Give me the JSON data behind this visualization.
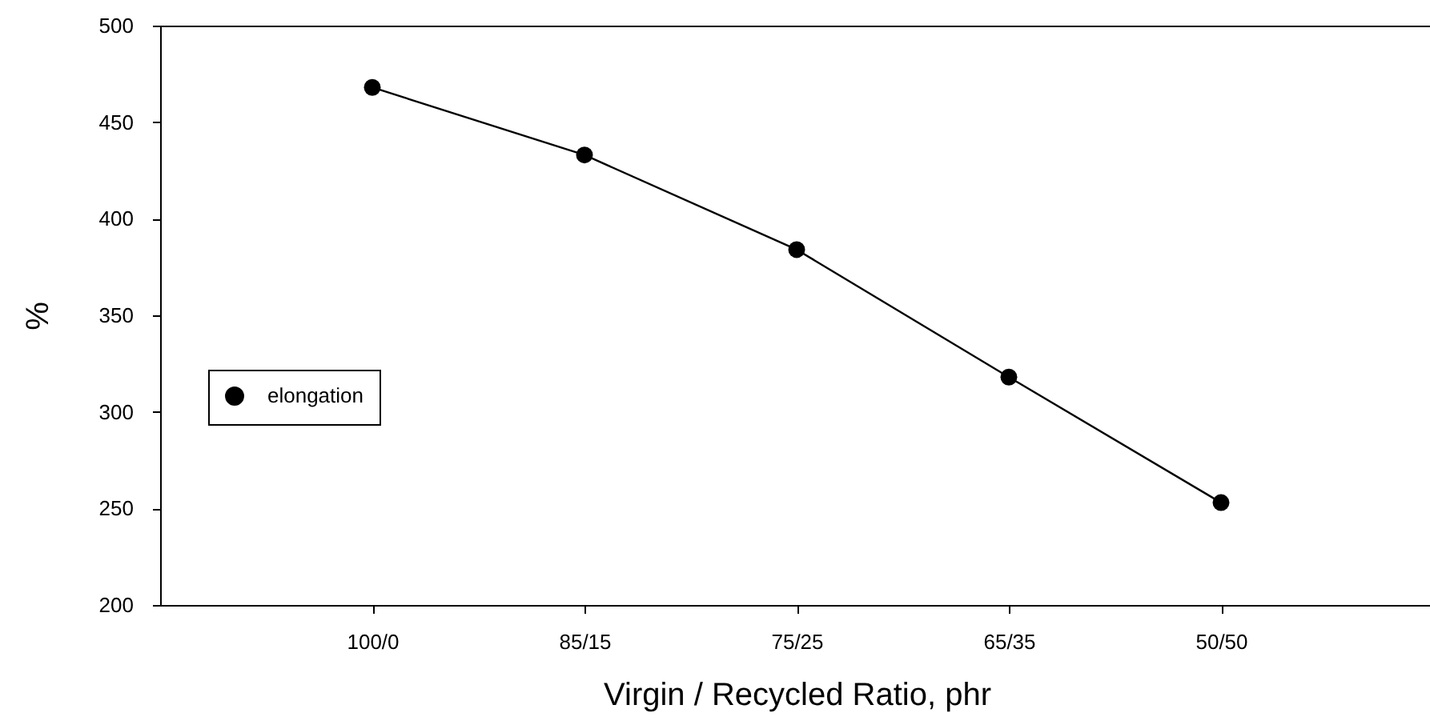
{
  "chart_data": {
    "type": "line",
    "xlabel": "Virgin / Recycled Ratio, phr",
    "ylabel": "%",
    "categories": [
      "100/0",
      "85/15",
      "75/25",
      "65/35",
      "50/50"
    ],
    "series": [
      {
        "name": "elongation",
        "color": "#000000",
        "values": [
          468,
          433,
          384,
          318,
          253
        ]
      }
    ],
    "ylim": [
      200,
      500
    ],
    "yticks": [
      200,
      250,
      300,
      350,
      400,
      450,
      500
    ],
    "legend": "left",
    "marker": "circle",
    "line_style": "solid"
  }
}
